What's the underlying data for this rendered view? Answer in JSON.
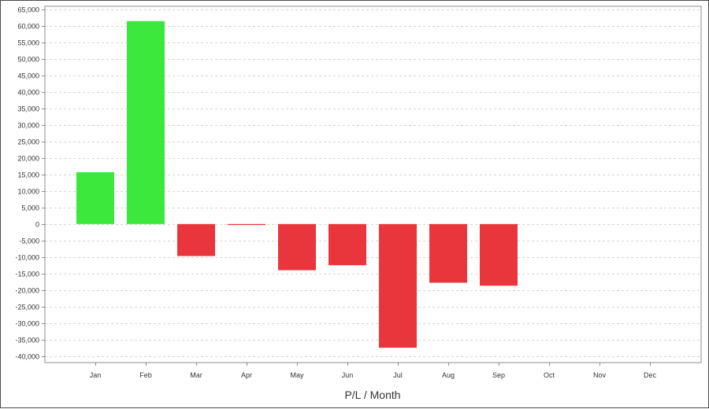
{
  "chart_data": {
    "type": "bar",
    "categories": [
      "Jan",
      "Feb",
      "Mar",
      "Apr",
      "May",
      "Jun",
      "Jul",
      "Aug",
      "Sep",
      "Oct",
      "Nov",
      "Dec"
    ],
    "values": [
      15700,
      61500,
      -9700,
      -300,
      -14000,
      -12500,
      -37500,
      -17800,
      -18700,
      null,
      null,
      null
    ],
    "xlabel": "P/L / Month",
    "ylabel": "",
    "ylim": [
      -42000,
      66000
    ],
    "yticks": [
      65000,
      60000,
      55000,
      50000,
      45000,
      40000,
      35000,
      30000,
      25000,
      20000,
      15000,
      10000,
      5000,
      0,
      -5000,
      -10000,
      -15000,
      -20000,
      -25000,
      -30000,
      -35000,
      -40000
    ],
    "ytick_labels": [
      "65,000",
      "60,000",
      "55,000",
      "50,000",
      "45,000",
      "40,000",
      "35,000",
      "30,000",
      "25,000",
      "20,000",
      "15,000",
      "10,000",
      "5,000",
      "0",
      "-5,000",
      "-10,000",
      "-15,000",
      "-20,000",
      "-25,000",
      "-30,000",
      "-35,000",
      "-40,000"
    ],
    "grid": true,
    "legend": "none",
    "colors": {
      "positive": "#3ce83c",
      "negative": "#e8363c",
      "grid": "#d4d4d4",
      "axis": "#8c8c8c"
    }
  }
}
